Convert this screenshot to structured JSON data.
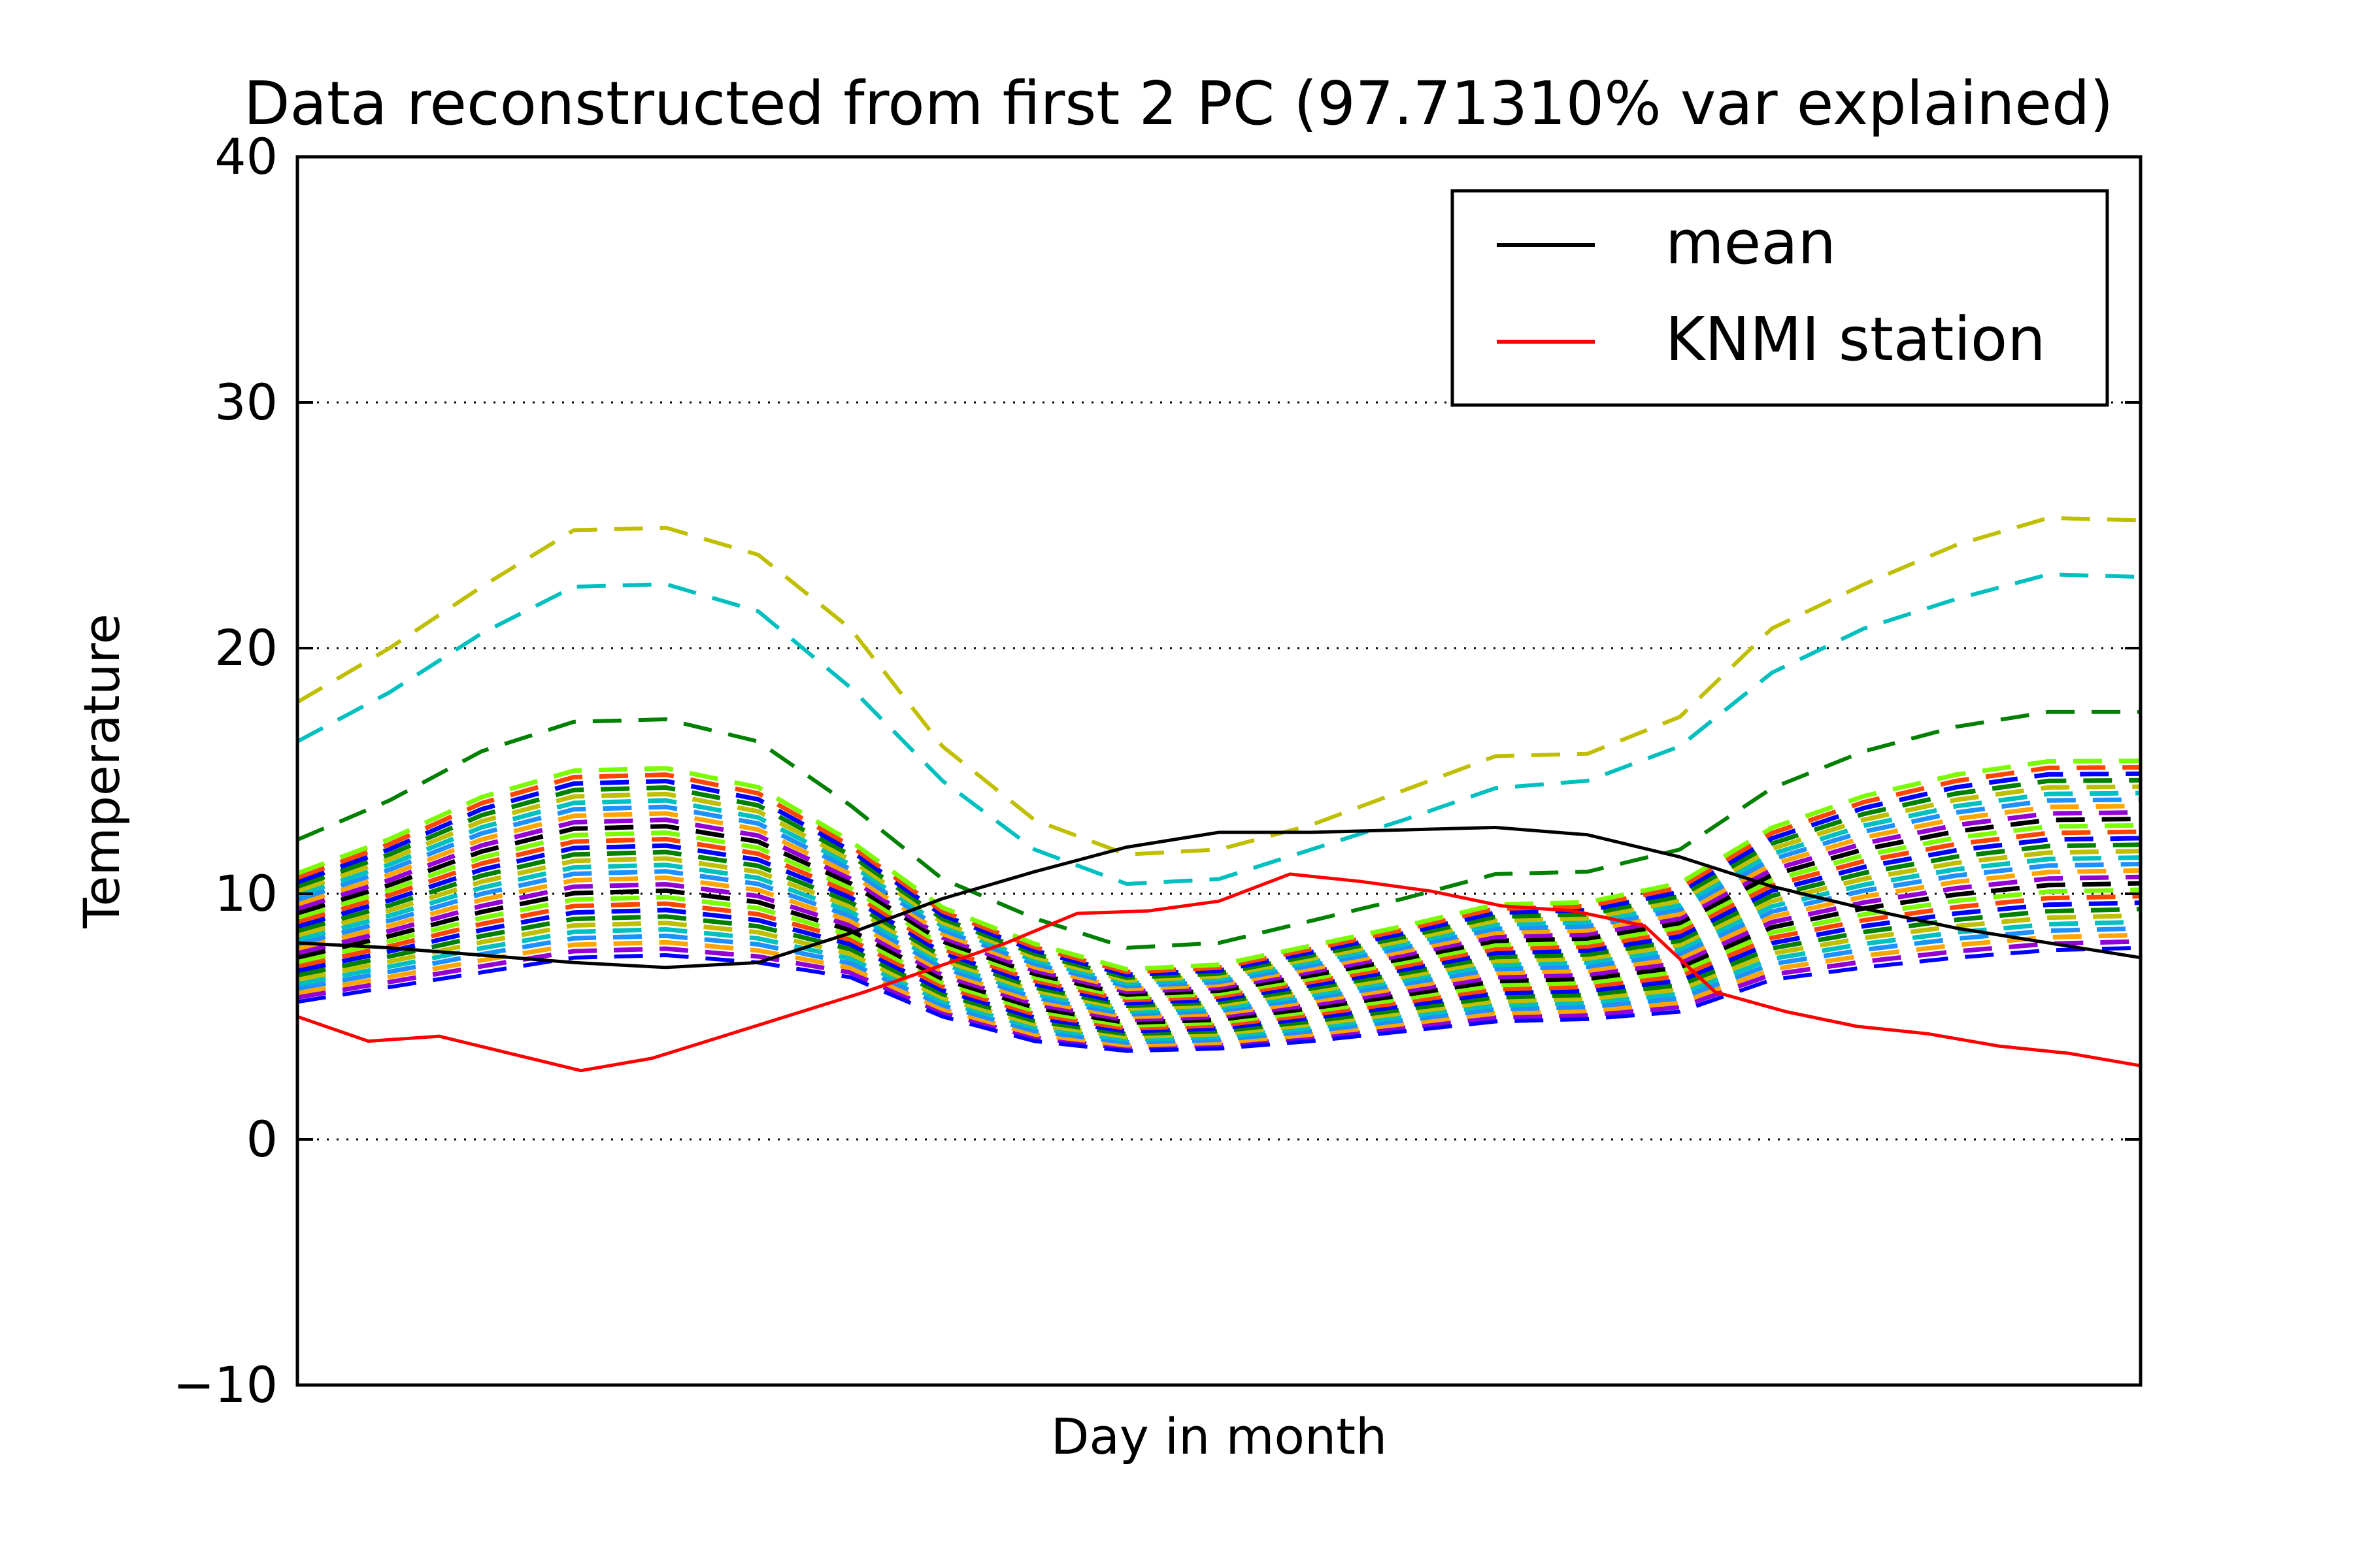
{
  "chart_data": {
    "type": "line",
    "title": "Data reconstructed from first 2 PC (97.71310% var explained)",
    "xlabel": "Day in month",
    "ylabel": "Temperature",
    "ylim": [
      -10,
      40
    ],
    "yticks": [
      "−10",
      "0",
      "10",
      "20",
      "30",
      "40"
    ],
    "ytick_values": [
      -10,
      0,
      10,
      20,
      30,
      40
    ],
    "x_ticks_shown": false,
    "grid": "horizontal dotted",
    "legend_position": "top-right",
    "legend": [
      {
        "name": "mean",
        "color": "#000000",
        "style": "solid"
      },
      {
        "name": "KNMI station",
        "color": "#ff0000",
        "style": "solid"
      }
    ],
    "series": [
      {
        "name": "mean",
        "color": "#000000",
        "style": "solid",
        "values": [
          8.0,
          7.8,
          7.5,
          7.2,
          7.0,
          7.2,
          8.4,
          9.8,
          10.9,
          11.9,
          12.5,
          12.5,
          12.6,
          12.7,
          12.4,
          11.5,
          10.3,
          9.4,
          8.6,
          8.0,
          7.4
        ]
      },
      {
        "name": "KNMI station",
        "color": "#ff0000",
        "style": "solid",
        "values": [
          5.0,
          4.0,
          4.2,
          3.5,
          2.8,
          3.3,
          4.2,
          5.1,
          6.0,
          7.0,
          8.0,
          9.2,
          9.3,
          9.7,
          10.8,
          10.5,
          10.1,
          9.5,
          9.3,
          8.7,
          6.0,
          5.2,
          4.6,
          4.3,
          3.8,
          3.5,
          3.0
        ]
      },
      {
        "name": "",
        "color": "#bfbf00",
        "style": "dashed",
        "values": [
          17.8,
          20.0,
          22.5,
          24.8,
          24.9,
          23.8,
          20.8,
          16.0,
          13.0,
          11.6,
          11.8,
          12.8,
          14.2,
          15.6,
          15.7,
          17.2,
          20.8,
          22.6,
          24.2,
          25.3,
          25.2
        ]
      },
      {
        "name": "",
        "color": "#00bfbf",
        "style": "dashed",
        "values": [
          16.2,
          18.2,
          20.6,
          22.5,
          22.6,
          21.5,
          18.4,
          14.6,
          11.8,
          10.4,
          10.6,
          11.8,
          13.0,
          14.3,
          14.6,
          16.0,
          19.0,
          20.8,
          22.0,
          23.0,
          22.9
        ]
      },
      {
        "name": "",
        "color": "#008000",
        "style": "dashed",
        "values": [
          12.2,
          13.8,
          15.8,
          17.0,
          17.1,
          16.2,
          13.6,
          10.6,
          9.0,
          7.8,
          8.0,
          8.9,
          9.8,
          10.8,
          10.9,
          11.8,
          14.3,
          15.8,
          16.8,
          17.4,
          17.4
        ]
      },
      {
        "name": "",
        "color": "#0000ff",
        "style": "dashed",
        "values": [
          5.6,
          6.2,
          6.8,
          7.4,
          7.5,
          7.2,
          6.6,
          5.0,
          4.0,
          3.6,
          3.7,
          4.0,
          4.4,
          4.8,
          4.9,
          5.2,
          6.5,
          7.0,
          7.4,
          7.7,
          7.8
        ]
      }
    ]
  }
}
